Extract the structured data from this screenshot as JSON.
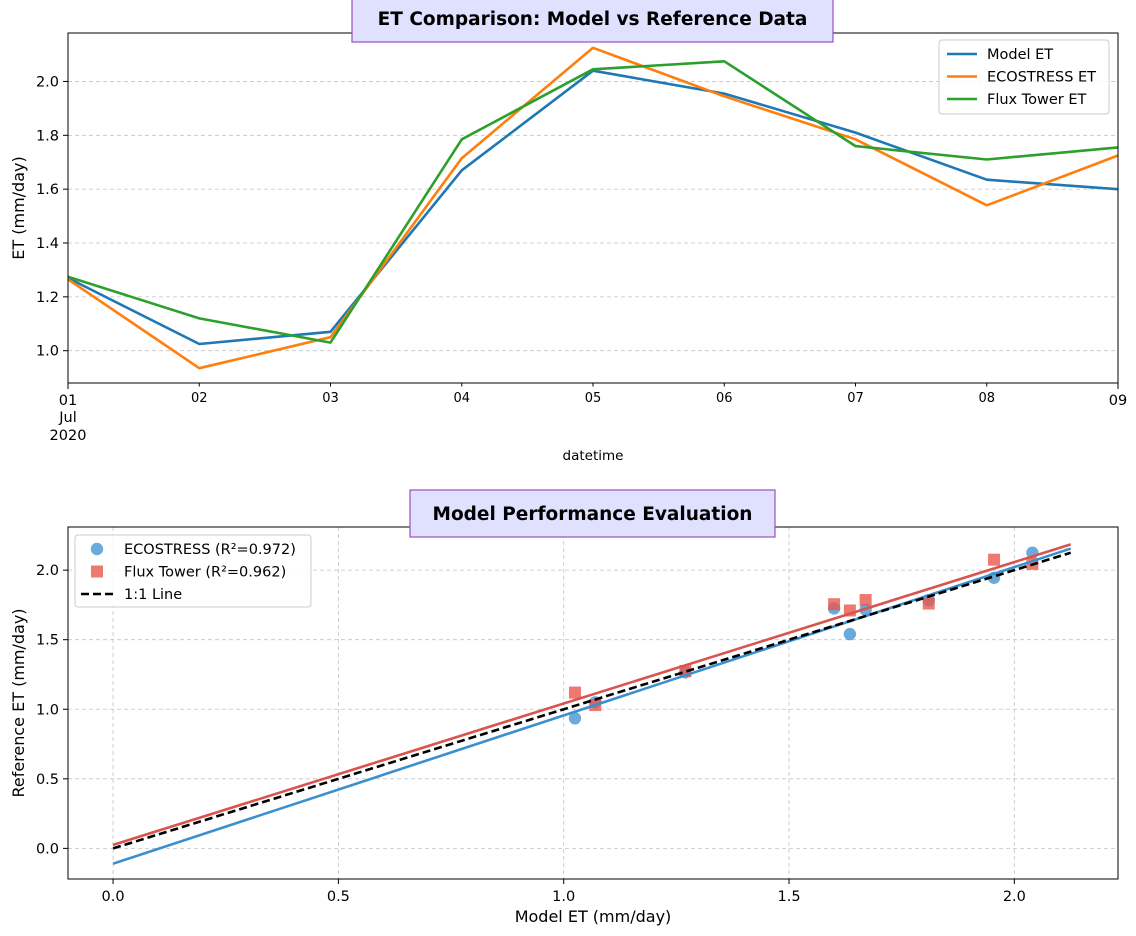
{
  "chart_data": [
    {
      "type": "line",
      "title": "ET Comparison: Model vs Reference Data",
      "xlabel": "datetime",
      "ylabel": "ET (mm/day)",
      "x": [
        "2020-07-01",
        "2020-07-02",
        "2020-07-03",
        "2020-07-04",
        "2020-07-05",
        "2020-07-06",
        "2020-07-07",
        "2020-07-08",
        "2020-07-09"
      ],
      "x_tick_labels": [
        "01",
        "02",
        "03",
        "04",
        "05",
        "06",
        "07",
        "08",
        "09"
      ],
      "x_tick_sublabels": [
        "Jul",
        "2020"
      ],
      "y_ticks": [
        1.0,
        1.2,
        1.4,
        1.6,
        1.8,
        2.0
      ],
      "y_tick_labels": [
        "1.0",
        "1.2",
        "1.4",
        "1.6",
        "1.8",
        "2.0"
      ],
      "ylim": [
        0.88,
        2.18
      ],
      "grid": "y",
      "legend_position": "top-right",
      "series": [
        {
          "name": "Model ET",
          "color": "#1f77b4",
          "values": [
            1.27,
            1.025,
            1.07,
            1.67,
            2.04,
            1.955,
            1.81,
            1.635,
            1.6
          ]
        },
        {
          "name": "ECOSTRESS ET",
          "color": "#ff7f0e",
          "values": [
            1.265,
            0.935,
            1.05,
            1.715,
            2.125,
            1.945,
            1.785,
            1.54,
            1.725
          ]
        },
        {
          "name": "Flux Tower ET",
          "color": "#2ca02c",
          "values": [
            1.275,
            1.12,
            1.03,
            1.785,
            2.045,
            2.075,
            1.76,
            1.71,
            1.755
          ]
        }
      ]
    },
    {
      "type": "scatter",
      "title": "Model Performance Evaluation",
      "xlabel": "Model ET (mm/day)",
      "ylabel": "Reference ET (mm/day)",
      "xlim": [
        -0.1,
        2.23
      ],
      "ylim": [
        -0.22,
        2.31
      ],
      "x_ticks": [
        0.0,
        0.5,
        1.0,
        1.5,
        2.0
      ],
      "x_tick_labels": [
        "0.0",
        "0.5",
        "1.0",
        "1.5",
        "2.0"
      ],
      "y_ticks": [
        0.0,
        0.5,
        1.0,
        1.5,
        2.0
      ],
      "y_tick_labels": [
        "0.0",
        "0.5",
        "1.0",
        "1.5",
        "2.0"
      ],
      "grid": "both",
      "legend_position": "top-left",
      "series": [
        {
          "name": "ECOSTRESS (R²=0.972)",
          "marker": "circle",
          "color": "#3a8fd0",
          "points": [
            [
              1.27,
              1.265
            ],
            [
              1.025,
              0.935
            ],
            [
              1.07,
              1.05
            ],
            [
              1.67,
              1.715
            ],
            [
              2.04,
              2.125
            ],
            [
              1.955,
              1.945
            ],
            [
              1.81,
              1.785
            ],
            [
              1.635,
              1.54
            ],
            [
              1.6,
              1.725
            ]
          ]
        },
        {
          "name": "Flux Tower (R²=0.962)",
          "marker": "square",
          "color": "#e8584c",
          "points": [
            [
              1.27,
              1.275
            ],
            [
              1.025,
              1.12
            ],
            [
              1.07,
              1.03
            ],
            [
              1.67,
              1.785
            ],
            [
              2.04,
              2.045
            ],
            [
              1.955,
              2.075
            ],
            [
              1.81,
              1.76
            ],
            [
              1.635,
              1.71
            ],
            [
              1.6,
              1.755
            ]
          ]
        }
      ],
      "lines": [
        {
          "name": "1:1 Line",
          "style": "dashed",
          "color": "#000000",
          "x": [
            0.0,
            2.125
          ],
          "y": [
            0.0,
            2.125
          ]
        },
        {
          "name": "",
          "style": "solid",
          "color": "#3a8fd0",
          "x": [
            0.0,
            2.125
          ],
          "y": [
            -0.11,
            2.155
          ]
        },
        {
          "name": "",
          "style": "solid",
          "color": "#d9534f",
          "x": [
            0.0,
            2.125
          ],
          "y": [
            0.025,
            2.185
          ]
        }
      ]
    }
  ]
}
